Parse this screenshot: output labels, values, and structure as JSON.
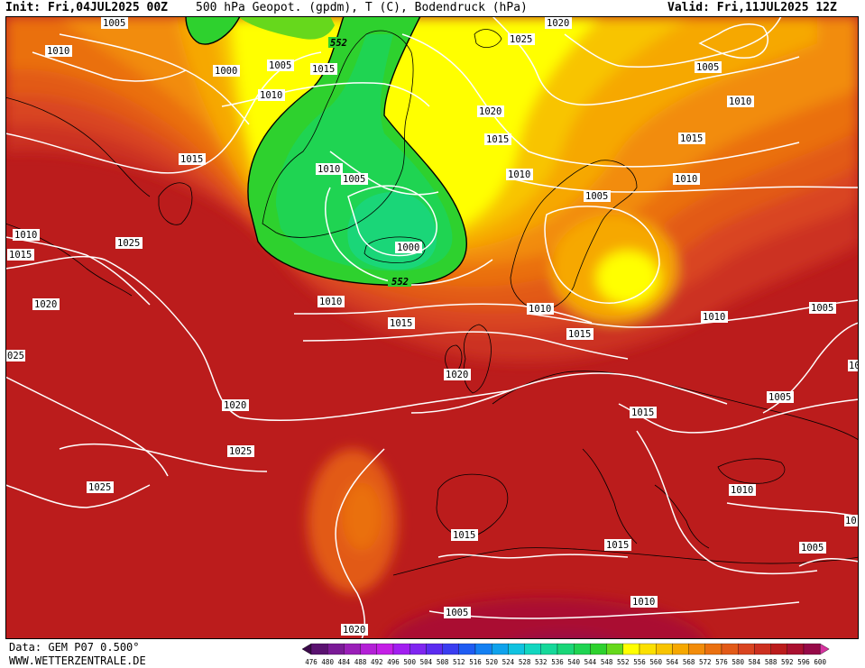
{
  "header": {
    "init_label": "Init: Fri,04JUL2025 00Z",
    "title": "500 hPa Geopot. (gpdm), T (C), Bodendruck (hPa)",
    "valid_label": "Valid: Fri,11JUL2025 12Z"
  },
  "footer": {
    "data_source": "Data: GEM P07 0.500°",
    "site": "WWW.WETTERZENTRALE.DE"
  },
  "colors": {
    "isobar": "#ffffff",
    "contour_552": "#000000",
    "land_outline": "#000000"
  },
  "colorbar": {
    "levels": [
      "476",
      "480",
      "484",
      "488",
      "492",
      "496",
      "500",
      "504",
      "508",
      "512",
      "516",
      "520",
      "524",
      "528",
      "532",
      "536",
      "540",
      "544",
      "548",
      "552",
      "556",
      "560",
      "564",
      "568",
      "572",
      "576",
      "580",
      "584",
      "588",
      "592",
      "596",
      "600"
    ],
    "colors": [
      "#3b0a4a",
      "#5a1270",
      "#7a1a96",
      "#9a1fb8",
      "#b320d6",
      "#c41fe6",
      "#a21ff0",
      "#7f26f0",
      "#5b2cf0",
      "#3a3df0",
      "#1f5cf2",
      "#1480f2",
      "#0fa2ec",
      "#10c2e0",
      "#12d6c0",
      "#16d89a",
      "#1ad678",
      "#1fd452",
      "#2ed12e",
      "#66d81c",
      "#ffff00",
      "#fbe000",
      "#f8c400",
      "#f6a800",
      "#f28c0a",
      "#ea7010",
      "#e25a18",
      "#d94420",
      "#cc3020",
      "#bb1c1c",
      "#aa1030",
      "#960a48",
      "#d6339f"
    ]
  },
  "map": {
    "contour_labels": [
      {
        "text": "552"
      },
      {
        "text": "552"
      }
    ],
    "isobar_labels": [
      {
        "text": "1005"
      },
      {
        "text": "1010"
      },
      {
        "text": "1000"
      },
      {
        "text": "1005"
      },
      {
        "text": "1015"
      },
      {
        "text": "1010"
      },
      {
        "text": "1020"
      },
      {
        "text": "1025"
      },
      {
        "text": "1005"
      },
      {
        "text": "1010"
      },
      {
        "text": "1020"
      },
      {
        "text": "1015"
      },
      {
        "text": "1015"
      },
      {
        "text": "1010"
      },
      {
        "text": "1010"
      },
      {
        "text": "1005"
      },
      {
        "text": "1000"
      },
      {
        "text": "1005"
      },
      {
        "text": "1010"
      },
      {
        "text": "1015"
      },
      {
        "text": "1025"
      },
      {
        "text": "1010"
      },
      {
        "text": "1015"
      },
      {
        "text": "1020"
      },
      {
        "text": "025"
      },
      {
        "text": "1010"
      },
      {
        "text": "1015"
      },
      {
        "text": "1010"
      },
      {
        "text": "1005"
      },
      {
        "text": "1020"
      },
      {
        "text": "1020"
      },
      {
        "text": "1025"
      },
      {
        "text": "1025"
      },
      {
        "text": "1015"
      },
      {
        "text": "1015"
      },
      {
        "text": "1015"
      },
      {
        "text": "1010"
      },
      {
        "text": "1005"
      },
      {
        "text": "1005"
      },
      {
        "text": "1010"
      },
      {
        "text": "1010"
      },
      {
        "text": "1020"
      },
      {
        "text": "1005"
      },
      {
        "text": "1015"
      },
      {
        "text": "10"
      },
      {
        "text": "10"
      }
    ]
  }
}
